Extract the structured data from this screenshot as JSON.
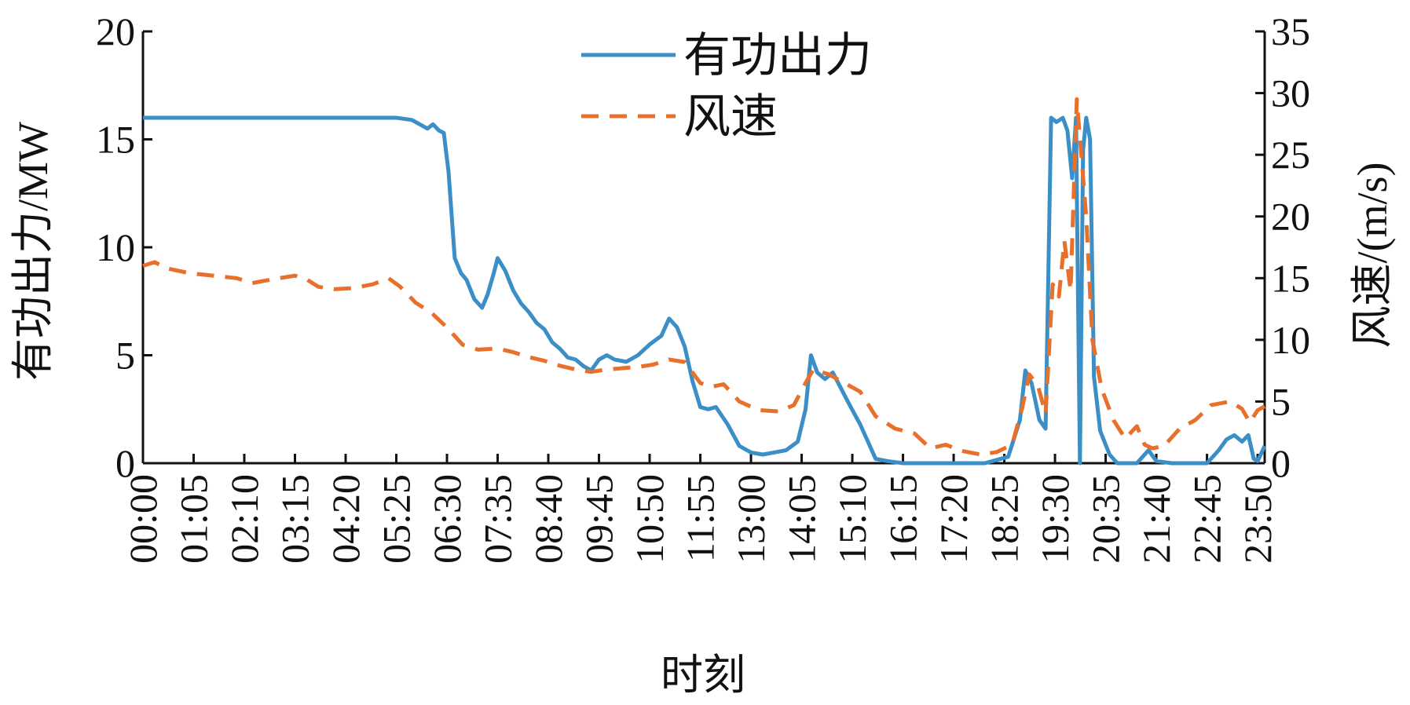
{
  "chart_data": {
    "type": "line",
    "xlabel": "时刻",
    "ylabel_left": "有功出力/MW",
    "ylabel_right": "风速/(m/s)",
    "ylim_left": [
      0,
      20
    ],
    "ylim_right": [
      0,
      35
    ],
    "yticks_left": [
      0,
      5,
      10,
      15,
      20
    ],
    "yticks_right": [
      0,
      5,
      10,
      15,
      20,
      25,
      30,
      35
    ],
    "x_tick_labels": [
      "00:00",
      "01:05",
      "02:10",
      "03:15",
      "04:20",
      "05:25",
      "06:30",
      "07:35",
      "08:40",
      "09:45",
      "10:50",
      "11:55",
      "13:00",
      "14:05",
      "15:10",
      "16:15",
      "17:20",
      "18:25",
      "19:30",
      "20:35",
      "21:40",
      "22:45",
      "23:50"
    ],
    "grid": false,
    "legend_position": "top-center",
    "series": [
      {
        "name": "有功出力",
        "axis": "left",
        "color": "#3b8fc6",
        "style": "solid",
        "points": [
          [
            "00:00",
            16.0
          ],
          [
            "01:00",
            16.0
          ],
          [
            "02:00",
            16.0
          ],
          [
            "03:00",
            16.0
          ],
          [
            "04:00",
            16.0
          ],
          [
            "05:00",
            16.0
          ],
          [
            "05:25",
            16.0
          ],
          [
            "05:45",
            15.9
          ],
          [
            "06:05",
            15.5
          ],
          [
            "06:12",
            15.7
          ],
          [
            "06:20",
            15.4
          ],
          [
            "06:26",
            15.3
          ],
          [
            "06:32",
            13.5
          ],
          [
            "06:40",
            9.5
          ],
          [
            "06:48",
            8.8
          ],
          [
            "06:55",
            8.5
          ],
          [
            "07:05",
            7.6
          ],
          [
            "07:15",
            7.2
          ],
          [
            "07:22",
            7.8
          ],
          [
            "07:30",
            8.8
          ],
          [
            "07:35",
            9.5
          ],
          [
            "07:45",
            8.9
          ],
          [
            "07:55",
            8.0
          ],
          [
            "08:05",
            7.4
          ],
          [
            "08:15",
            7.0
          ],
          [
            "08:25",
            6.5
          ],
          [
            "08:35",
            6.2
          ],
          [
            "08:45",
            5.6
          ],
          [
            "08:55",
            5.3
          ],
          [
            "09:05",
            4.9
          ],
          [
            "09:15",
            4.8
          ],
          [
            "09:25",
            4.5
          ],
          [
            "09:35",
            4.3
          ],
          [
            "09:45",
            4.8
          ],
          [
            "09:55",
            5.0
          ],
          [
            "10:05",
            4.8
          ],
          [
            "10:20",
            4.7
          ],
          [
            "10:35",
            5.0
          ],
          [
            "10:50",
            5.5
          ],
          [
            "11:05",
            5.9
          ],
          [
            "11:15",
            6.7
          ],
          [
            "11:25",
            6.3
          ],
          [
            "11:35",
            5.4
          ],
          [
            "11:45",
            3.8
          ],
          [
            "11:55",
            2.6
          ],
          [
            "12:05",
            2.5
          ],
          [
            "12:15",
            2.6
          ],
          [
            "12:30",
            1.8
          ],
          [
            "12:45",
            0.8
          ],
          [
            "13:00",
            0.5
          ],
          [
            "13:15",
            0.4
          ],
          [
            "13:30",
            0.5
          ],
          [
            "13:45",
            0.6
          ],
          [
            "14:00",
            1.0
          ],
          [
            "14:10",
            2.5
          ],
          [
            "14:17",
            5.0
          ],
          [
            "14:25",
            4.2
          ],
          [
            "14:35",
            3.9
          ],
          [
            "14:45",
            4.2
          ],
          [
            "14:55",
            3.5
          ],
          [
            "15:05",
            2.8
          ],
          [
            "15:20",
            1.8
          ],
          [
            "15:30",
            1.0
          ],
          [
            "15:40",
            0.2
          ],
          [
            "15:55",
            0.1
          ],
          [
            "16:15",
            0.0
          ],
          [
            "17:00",
            0.0
          ],
          [
            "18:00",
            0.0
          ],
          [
            "18:30",
            0.3
          ],
          [
            "18:45",
            2.0
          ],
          [
            "18:52",
            4.3
          ],
          [
            "19:00",
            3.7
          ],
          [
            "19:10",
            2.0
          ],
          [
            "19:18",
            1.6
          ],
          [
            "19:25",
            16.0
          ],
          [
            "19:32",
            15.8
          ],
          [
            "19:40",
            16.0
          ],
          [
            "19:46",
            15.4
          ],
          [
            "19:52",
            13.2
          ],
          [
            "19:57",
            16.0
          ],
          [
            "20:02",
            0.0
          ],
          [
            "20:06",
            14.5
          ],
          [
            "20:10",
            16.0
          ],
          [
            "20:15",
            15.0
          ],
          [
            "20:20",
            4.0
          ],
          [
            "20:28",
            1.5
          ],
          [
            "20:40",
            0.4
          ],
          [
            "20:50",
            0.0
          ],
          [
            "21:15",
            0.0
          ],
          [
            "21:30",
            0.6
          ],
          [
            "21:40",
            0.1
          ],
          [
            "22:00",
            0.0
          ],
          [
            "22:45",
            0.0
          ],
          [
            "23:00",
            0.6
          ],
          [
            "23:10",
            1.1
          ],
          [
            "23:20",
            1.3
          ],
          [
            "23:30",
            1.0
          ],
          [
            "23:38",
            1.3
          ],
          [
            "23:45",
            0.2
          ],
          [
            "23:50",
            0.1
          ],
          [
            "23:59",
            0.8
          ]
        ]
      },
      {
        "name": "风速",
        "axis": "right",
        "color": "#e8702a",
        "style": "dashed",
        "points": [
          [
            "00:00",
            16.0
          ],
          [
            "00:15",
            16.3
          ],
          [
            "00:30",
            15.8
          ],
          [
            "01:00",
            15.4
          ],
          [
            "01:30",
            15.2
          ],
          [
            "02:00",
            15.0
          ],
          [
            "02:20",
            14.6
          ],
          [
            "02:45",
            14.9
          ],
          [
            "03:15",
            15.2
          ],
          [
            "03:30",
            14.9
          ],
          [
            "03:45",
            14.3
          ],
          [
            "04:05",
            14.1
          ],
          [
            "04:30",
            14.2
          ],
          [
            "04:55",
            14.5
          ],
          [
            "05:15",
            15.0
          ],
          [
            "05:30",
            14.3
          ],
          [
            "05:50",
            13.0
          ],
          [
            "06:10",
            12.2
          ],
          [
            "06:30",
            11.0
          ],
          [
            "06:50",
            9.6
          ],
          [
            "07:10",
            9.2
          ],
          [
            "07:35",
            9.3
          ],
          [
            "07:55",
            9.0
          ],
          [
            "08:15",
            8.6
          ],
          [
            "08:35",
            8.3
          ],
          [
            "08:55",
            7.9
          ],
          [
            "09:15",
            7.6
          ],
          [
            "09:35",
            7.4
          ],
          [
            "09:55",
            7.6
          ],
          [
            "10:15",
            7.7
          ],
          [
            "10:35",
            7.8
          ],
          [
            "10:55",
            8.0
          ],
          [
            "11:15",
            8.4
          ],
          [
            "11:35",
            8.2
          ],
          [
            "11:55",
            6.5
          ],
          [
            "12:10",
            6.2
          ],
          [
            "12:25",
            6.4
          ],
          [
            "12:45",
            5.0
          ],
          [
            "13:10",
            4.3
          ],
          [
            "13:35",
            4.2
          ],
          [
            "13:55",
            4.7
          ],
          [
            "14:10",
            6.5
          ],
          [
            "14:20",
            7.6
          ],
          [
            "14:40",
            7.2
          ],
          [
            "15:00",
            6.5
          ],
          [
            "15:20",
            5.8
          ],
          [
            "15:40",
            3.8
          ],
          [
            "16:05",
            2.8
          ],
          [
            "16:30",
            2.4
          ],
          [
            "16:50",
            1.2
          ],
          [
            "17:10",
            1.5
          ],
          [
            "17:30",
            1.0
          ],
          [
            "17:55",
            0.7
          ],
          [
            "18:15",
            0.9
          ],
          [
            "18:35",
            1.5
          ],
          [
            "18:48",
            4.5
          ],
          [
            "18:57",
            7.2
          ],
          [
            "19:08",
            6.3
          ],
          [
            "19:18",
            4.0
          ],
          [
            "19:27",
            14.5
          ],
          [
            "19:35",
            13.5
          ],
          [
            "19:42",
            18.0
          ],
          [
            "19:50",
            14.0
          ],
          [
            "19:58",
            29.5
          ],
          [
            "20:05",
            24.0
          ],
          [
            "20:10",
            20.0
          ],
          [
            "20:18",
            10.0
          ],
          [
            "20:30",
            6.0
          ],
          [
            "20:45",
            3.5
          ],
          [
            "21:00",
            2.0
          ],
          [
            "21:15",
            3.0
          ],
          [
            "21:25",
            1.5
          ],
          [
            "21:35",
            1.2
          ],
          [
            "21:50",
            1.4
          ],
          [
            "22:10",
            2.8
          ],
          [
            "22:30",
            3.5
          ],
          [
            "22:50",
            4.7
          ],
          [
            "23:15",
            5.0
          ],
          [
            "23:30",
            4.4
          ],
          [
            "23:40",
            3.3
          ],
          [
            "23:50",
            4.3
          ],
          [
            "23:59",
            4.6
          ]
        ]
      }
    ]
  }
}
